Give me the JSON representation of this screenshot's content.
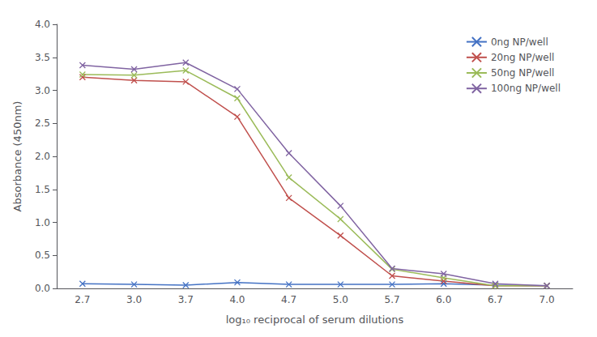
{
  "chart_data": {
    "type": "line",
    "xlabel": "log₁₀ reciprocal of serum dilutions",
    "ylabel": "Absorbance (450nm)",
    "categories": [
      "2.7",
      "3.0",
      "3.7",
      "4.0",
      "4.7",
      "5.0",
      "5.7",
      "6.0",
      "6.7",
      "7.0"
    ],
    "series": [
      {
        "name": "0ng NP/well",
        "color": "#4472C4",
        "values": [
          0.07,
          0.06,
          0.05,
          0.09,
          0.06,
          0.06,
          0.06,
          0.07,
          0.05,
          0.04
        ]
      },
      {
        "name": "20ng NP/well",
        "color": "#C0504D",
        "values": [
          3.2,
          3.15,
          3.13,
          2.6,
          1.37,
          0.8,
          0.19,
          0.11,
          0.04,
          0.04
        ]
      },
      {
        "name": "50ng NP/well",
        "color": "#9BBB59",
        "values": [
          3.24,
          3.23,
          3.3,
          2.88,
          1.68,
          1.05,
          0.29,
          0.16,
          0.04,
          0.04
        ]
      },
      {
        "name": "100ng NP/well",
        "color": "#8064A2",
        "values": [
          3.38,
          3.32,
          3.42,
          3.02,
          2.05,
          1.25,
          0.3,
          0.22,
          0.07,
          0.04
        ]
      }
    ],
    "ylim": [
      0.0,
      4.0
    ],
    "yticks": [
      {
        "value": 0,
        "label": "0.0"
      },
      0.5,
      {
        "value": 1,
        "label": "1.0"
      },
      1.5,
      {
        "value": 2,
        "label": "2.0"
      },
      2.5,
      {
        "value": 3,
        "label": "3.0"
      },
      3.5,
      {
        "value": 4,
        "label": "4.0"
      }
    ],
    "marker": "x",
    "grid": false,
    "legend": "upper right"
  }
}
